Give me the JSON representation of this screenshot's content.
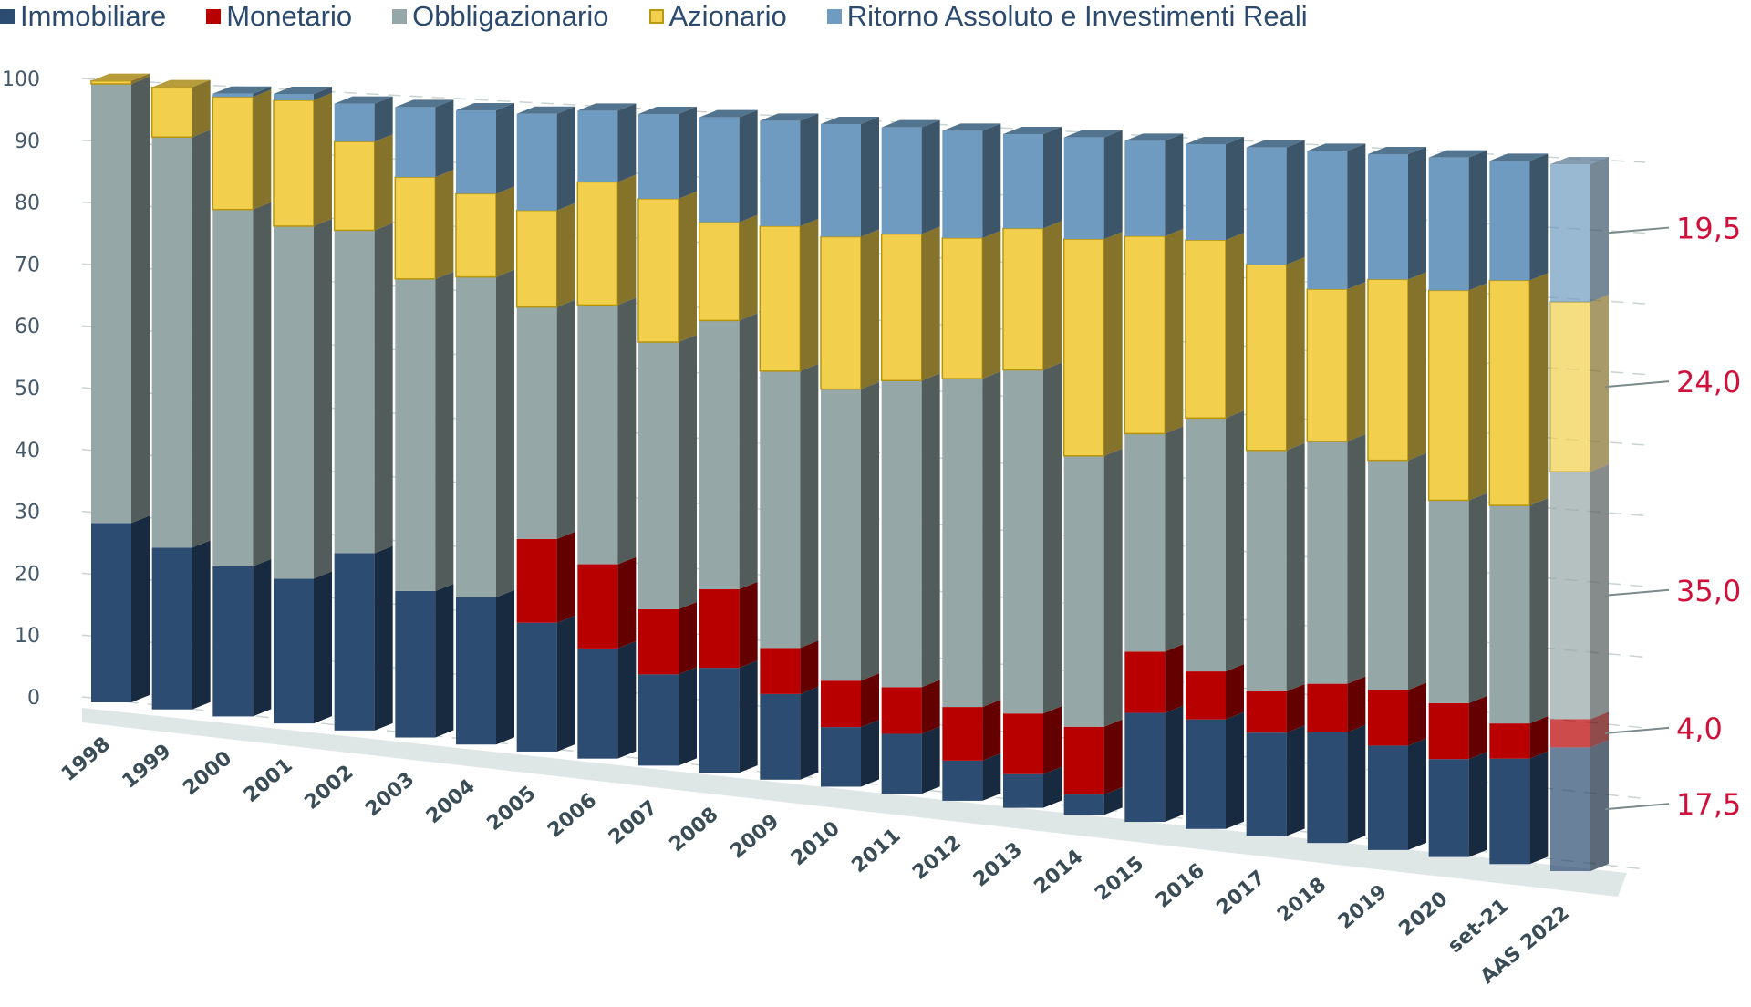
{
  "chart_data": {
    "type": "bar",
    "stacked": true,
    "three_d": true,
    "title": "",
    "xlabel": "",
    "ylabel": "",
    "ylim": [
      0,
      100
    ],
    "yticks": [
      "0",
      "10",
      "20",
      "30",
      "40",
      "50",
      "60",
      "70",
      "80",
      "90",
      "100"
    ],
    "grid": true,
    "legend_position": "top",
    "categories": [
      "1998",
      "1999",
      "2000",
      "2001",
      "2002",
      "2003",
      "2004",
      "2005",
      "2006",
      "2007",
      "2008",
      "2009",
      "2010",
      "2011",
      "2012",
      "2013",
      "2014",
      "2015",
      "2016",
      "2017",
      "2018",
      "2019",
      "2020",
      "set-21",
      "AAS 2022"
    ],
    "series": [
      {
        "name": "Immobiliare",
        "color": "#2c4c72",
        "values": [
          29,
          26,
          24,
          23,
          28,
          23,
          23,
          20,
          17,
          14,
          16,
          13,
          9,
          9,
          6,
          5,
          3,
          16,
          16,
          15,
          16,
          15,
          14,
          15,
          17.5
        ]
      },
      {
        "name": "Monetario",
        "color": "#b80000",
        "values": [
          0,
          0,
          0,
          0,
          0,
          0,
          0,
          13,
          13,
          10,
          12,
          7,
          7,
          7,
          8,
          9,
          10,
          9,
          7,
          6,
          7,
          8,
          8,
          5,
          4.0
        ]
      },
      {
        "name": "Obbligazionario",
        "color": "#95a7a6",
        "values": [
          71,
          66,
          57,
          56,
          51,
          49,
          50,
          36,
          40,
          41,
          41,
          42,
          44,
          46,
          49,
          51,
          40,
          32,
          37,
          35,
          35,
          33,
          29,
          31,
          35.0
        ]
      },
      {
        "name": "Azionario",
        "color": "#f2d04e",
        "values": [
          0.5,
          8,
          18,
          20,
          14,
          16,
          13,
          15,
          19,
          22,
          15,
          22,
          23,
          22,
          21,
          21,
          32,
          29,
          26,
          27,
          22,
          26,
          30,
          32,
          24.0
        ]
      },
      {
        "name": "Ritorno Assoluto e Investimenti Reali",
        "color": "#6e9bbf",
        "values": [
          0,
          0,
          0.5,
          1,
          6,
          11,
          13,
          15,
          11,
          13,
          16,
          16,
          17,
          16,
          16,
          14,
          15,
          14,
          14,
          17,
          20,
          18,
          19,
          17,
          19.5
        ]
      }
    ],
    "annotations": [
      {
        "category": "AAS 2022",
        "series": "Ritorno Assoluto e Investimenti Reali",
        "label": "19,5"
      },
      {
        "category": "AAS 2022",
        "series": "Azionario",
        "label": "24,0"
      },
      {
        "category": "AAS 2022",
        "series": "Obbligazionario",
        "label": "35,0"
      },
      {
        "category": "AAS 2022",
        "series": "Monetario",
        "label": "4,0"
      },
      {
        "category": "AAS 2022",
        "series": "Immobiliare",
        "label": "17,5"
      }
    ],
    "highlighted_category": "AAS 2022"
  },
  "legend": [
    {
      "label": "Immobiliare",
      "color": "#2c4c72"
    },
    {
      "label": "Monetario",
      "color": "#b80000"
    },
    {
      "label": "Obbligazionario",
      "color": "#95a7a6"
    },
    {
      "label": "Azionario",
      "color": "#f2d04e"
    },
    {
      "label": "Ritorno Assoluto e Investimenti Reali",
      "color": "#6e9bbf"
    }
  ],
  "callout_color": "#d0103a"
}
